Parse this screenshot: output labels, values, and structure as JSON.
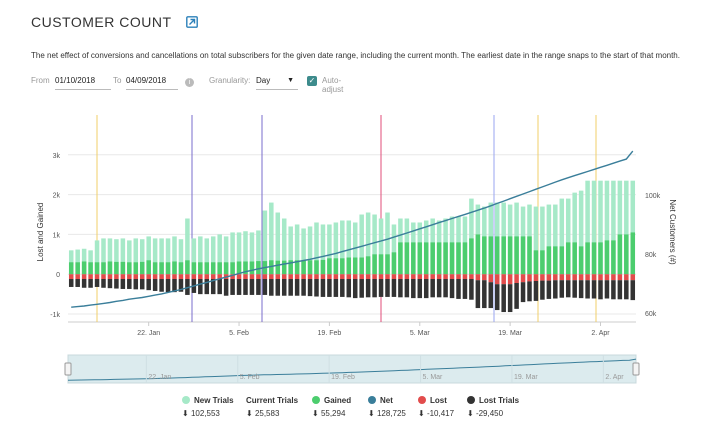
{
  "header": {
    "title": "CUSTOMER COUNT"
  },
  "description": "The net effect of conversions and cancellations on total subscribers for the given date range, including the current month. The earliest date in the range snaps to the start of that month.",
  "filters": {
    "from_label": "From",
    "from_value": "01/10/2018",
    "to_label": "To",
    "to_value": "04/09/2018",
    "granularity_label": "Granularity:",
    "granularity_value": "Day",
    "auto_adjust_label": "Auto-adjust",
    "auto_adjust_checked": true
  },
  "chart_data": {
    "type": "bar",
    "x_tick_labels": [
      "22. Jan",
      "5. Feb",
      "19. Feb",
      "5. Mar",
      "19. Mar",
      "2. Apr"
    ],
    "navigator_labels": [
      "22. Jan",
      "5. Feb",
      "19. Feb",
      "5. Mar",
      "19. Mar",
      "2. Apr"
    ],
    "ylabel_left": "Lost and Gained",
    "ylabel_right": "Net Customers (#)",
    "y_left_ticks": [
      "3k",
      "2k",
      "1k",
      "0",
      "-1k"
    ],
    "y_right_ticks": [
      "100k",
      "80k",
      "60k"
    ],
    "ylim_left": [
      -1200,
      4000
    ],
    "ylim_right": [
      57000,
      127000
    ],
    "colors": {
      "new_trials": "#a6e9c8",
      "current_trials": "#333333",
      "gained": "#4ccd6e",
      "net": "#3a7e9a",
      "lost": "#e24c4c",
      "lost_trials": "#333333"
    },
    "series": [
      {
        "name": "New Trials",
        "color": "#a6e9c8",
        "total": "102,553",
        "values": [
          600,
          620,
          640,
          600,
          850,
          900,
          900,
          880,
          900,
          850,
          900,
          880,
          950,
          900,
          900,
          900,
          950,
          880,
          1400,
          900,
          950,
          900,
          950,
          1000,
          950,
          1050,
          1050,
          1080,
          1050,
          1100,
          1600,
          1800,
          1550,
          1400,
          1200,
          1250,
          1150,
          1200,
          1300,
          1250,
          1250,
          1300,
          1350,
          1350,
          1300,
          1500,
          1550,
          1500,
          1400,
          1550,
          1250,
          1400,
          1400,
          1300,
          1300,
          1350,
          1400,
          1350,
          1400,
          1450,
          1450,
          1450,
          1900,
          1750,
          1700,
          1800,
          1800,
          1800,
          1750,
          1800,
          1700,
          1750,
          1700,
          1700,
          1750,
          1750,
          1900,
          1900,
          2050,
          2100,
          2350,
          2350,
          2350,
          2350,
          2350,
          2350,
          2350,
          2350
        ]
      },
      {
        "name": "Current Trials",
        "color": "#333333",
        "total": "25,583",
        "values": []
      },
      {
        "name": "Gained",
        "color": "#4ccd6e",
        "total": "55,294",
        "values": [
          300,
          300,
          320,
          300,
          300,
          300,
          320,
          310,
          310,
          300,
          300,
          310,
          350,
          300,
          300,
          300,
          320,
          300,
          350,
          300,
          300,
          300,
          300,
          300,
          300,
          300,
          320,
          320,
          320,
          330,
          330,
          350,
          340,
          340,
          350,
          350,
          340,
          350,
          350,
          360,
          400,
          400,
          400,
          420,
          420,
          420,
          450,
          500,
          500,
          500,
          550,
          800,
          800,
          800,
          800,
          800,
          800,
          800,
          800,
          800,
          800,
          800,
          900,
          1000,
          950,
          950,
          950,
          950,
          950,
          950,
          950,
          950,
          600,
          600,
          700,
          700,
          700,
          800,
          800,
          700,
          800,
          800,
          800,
          850,
          850,
          1000,
          1000,
          1050
        ]
      },
      {
        "name": "Net",
        "color": "#3a7e9a",
        "total": "128,725",
        "values": [
          62000,
          62200,
          62400,
          62700,
          63000,
          63300,
          63600,
          64000,
          64300,
          64700,
          65000,
          65300,
          65700,
          66100,
          66500,
          67000,
          67500,
          68000,
          68600,
          69200,
          69800,
          70400,
          71000,
          71600,
          72200,
          72800,
          73400,
          74000,
          74500,
          75000,
          75400,
          75800,
          76200,
          76600,
          77000,
          77400,
          77800,
          78200,
          78700,
          79200,
          79700,
          80200,
          80800,
          81400,
          82000,
          82600,
          83200,
          83800,
          84400,
          85000,
          85700,
          86400,
          87100,
          87800,
          88500,
          89200,
          89900,
          90600,
          91300,
          92000,
          92700,
          93400,
          94100,
          94800,
          95500,
          96300,
          97100,
          97900,
          98700,
          99500,
          100300,
          101100,
          101900,
          102700,
          103500,
          104300,
          105100,
          105800,
          106500,
          107200,
          107900,
          108600,
          109300,
          110000,
          110700,
          111400,
          112100,
          114800
        ]
      },
      {
        "name": "Lost",
        "color": "#e24c4c",
        "total": "-10,417",
        "values": [
          -120,
          -120,
          -120,
          -120,
          -120,
          -120,
          -120,
          -120,
          -120,
          -120,
          -120,
          -120,
          -120,
          -120,
          -120,
          -120,
          -120,
          -120,
          -120,
          -120,
          -120,
          -120,
          -120,
          -120,
          -120,
          -120,
          -120,
          -120,
          -120,
          -120,
          -120,
          -120,
          -120,
          -120,
          -120,
          -120,
          -120,
          -120,
          -120,
          -120,
          -120,
          -120,
          -120,
          -120,
          -120,
          -120,
          -120,
          -120,
          -120,
          -120,
          -120,
          -120,
          -120,
          -120,
          -120,
          -120,
          -120,
          -120,
          -120,
          -120,
          -120,
          -120,
          -120,
          -150,
          -150,
          -200,
          -250,
          -250,
          -250,
          -220,
          -200,
          -180,
          -170,
          -160,
          -160,
          -150,
          -150,
          -150,
          -150,
          -150,
          -150,
          -150,
          -150,
          -150,
          -150,
          -150,
          -150,
          -150
        ]
      },
      {
        "name": "Lost Trials",
        "color": "#333333",
        "total": "-29,450",
        "values": [
          -200,
          -200,
          -220,
          -220,
          -200,
          -220,
          -230,
          -240,
          -250,
          -250,
          -260,
          -260,
          -280,
          -300,
          -320,
          -330,
          -330,
          -320,
          -400,
          -350,
          -380,
          -380,
          -380,
          -380,
          -420,
          -400,
          -400,
          -400,
          -400,
          -400,
          -400,
          -420,
          -420,
          -420,
          -420,
          -420,
          -420,
          -430,
          -440,
          -450,
          -450,
          -450,
          -450,
          -460,
          -480,
          -470,
          -460,
          -460,
          -450,
          -450,
          -450,
          -460,
          -460,
          -480,
          -480,
          -480,
          -460,
          -460,
          -460,
          -480,
          -500,
          -500,
          -520,
          -700,
          -700,
          -650,
          -650,
          -700,
          -700,
          -650,
          -500,
          -500,
          -500,
          -480,
          -460,
          -460,
          -440,
          -430,
          -440,
          -450,
          -460,
          -460,
          -480,
          -460,
          -480,
          -480,
          -480,
          -500
        ]
      }
    ]
  }
}
